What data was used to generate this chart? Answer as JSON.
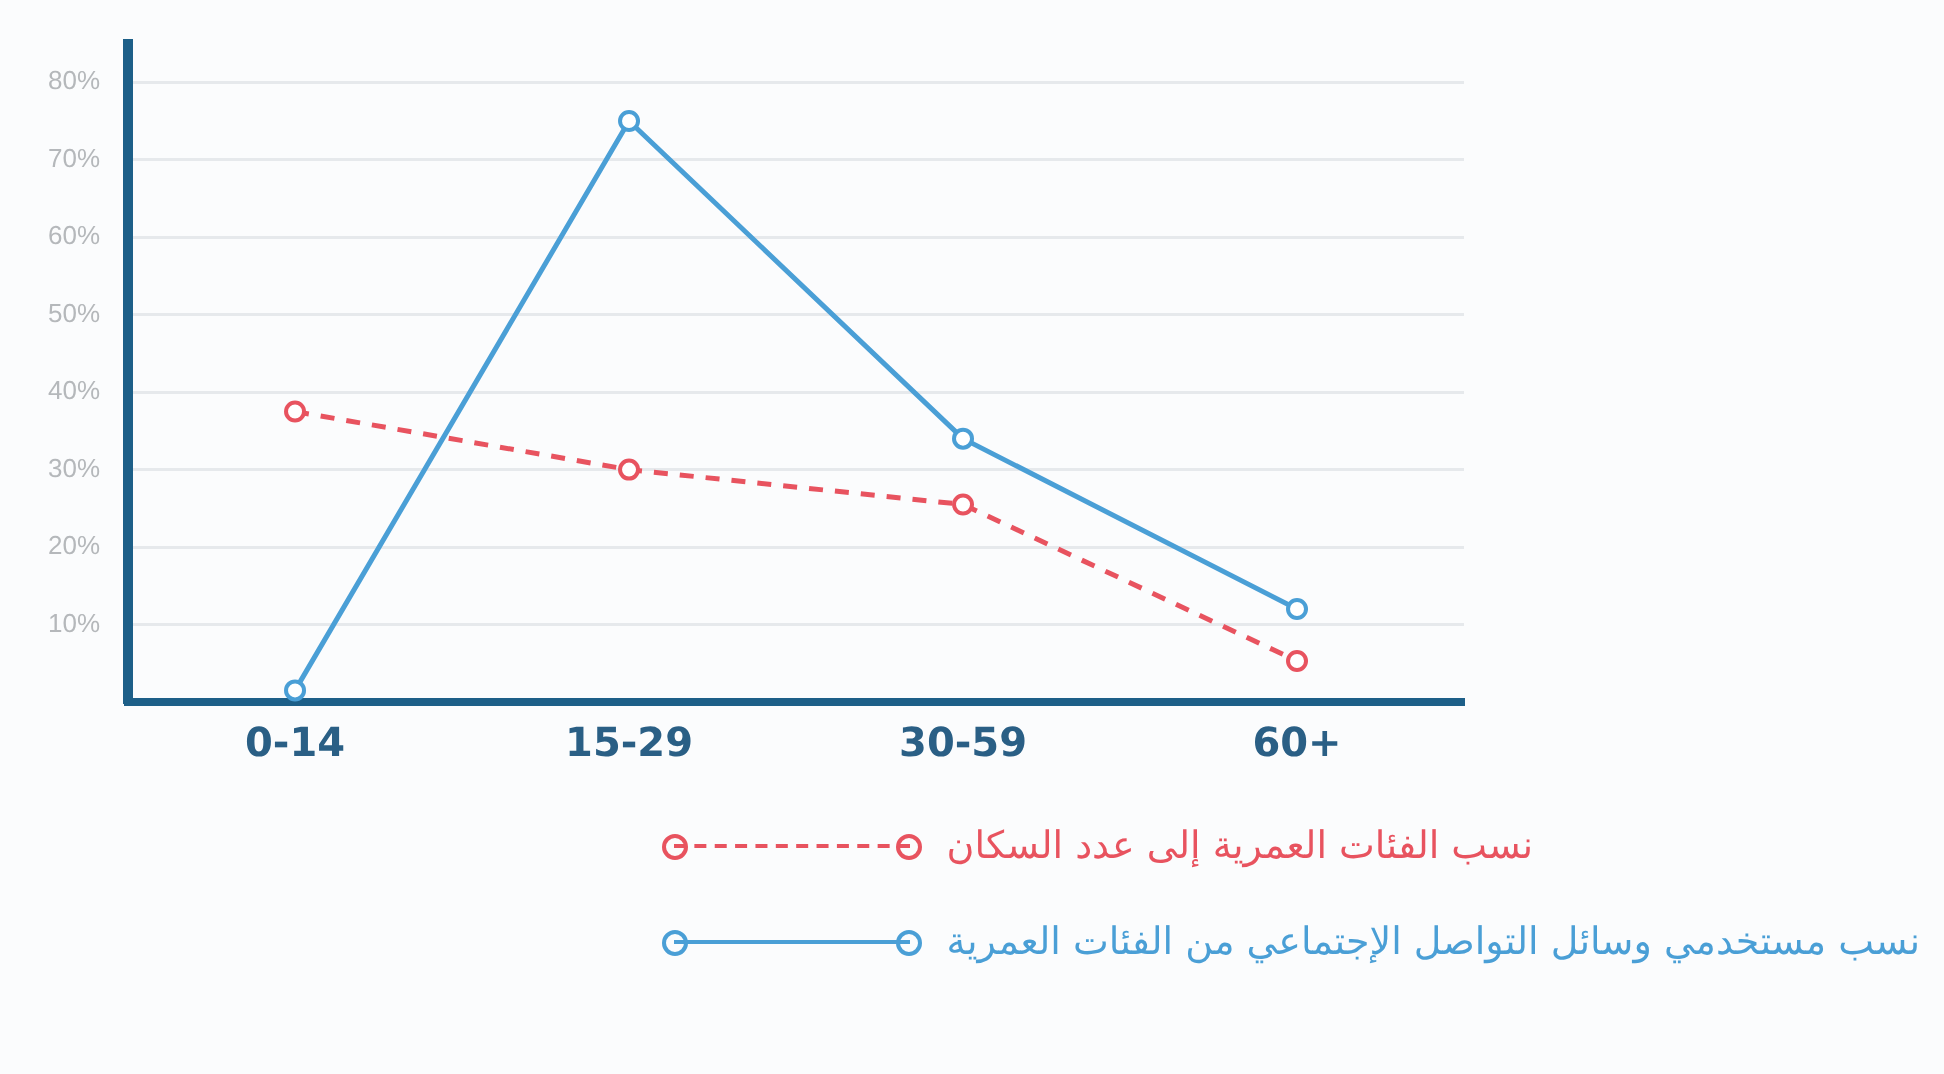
{
  "chart_data": {
    "type": "line",
    "categories": [
      "0-14",
      "15-29",
      "30-59",
      "60+"
    ],
    "series": [
      {
        "name": "نسب الفئات العمرية إلى عدد السكان",
        "color": "#e8535f",
        "line_style": "dashed",
        "values": [
          37.5,
          30,
          25.5,
          5.3
        ]
      },
      {
        "name": "نسب مستخدمي وسائل التواصل الإجتماعي من الفئات العمرية",
        "color": "#4a9fd6",
        "line_style": "solid",
        "values": [
          1.5,
          75,
          34,
          12
        ]
      }
    ],
    "ylim": [
      0,
      85
    ],
    "yticks": [
      {
        "value": 10,
        "label": "10%"
      },
      {
        "value": 20,
        "label": "20%"
      },
      {
        "value": 30,
        "label": "30%"
      },
      {
        "value": 40,
        "label": "40%"
      },
      {
        "value": 50,
        "label": "50%"
      },
      {
        "value": 60,
        "label": "60%"
      },
      {
        "value": 70,
        "label": "70%"
      },
      {
        "value": 80,
        "label": "80%"
      }
    ],
    "grid": "y",
    "legend": "bottom right",
    "marker": "circle"
  }
}
